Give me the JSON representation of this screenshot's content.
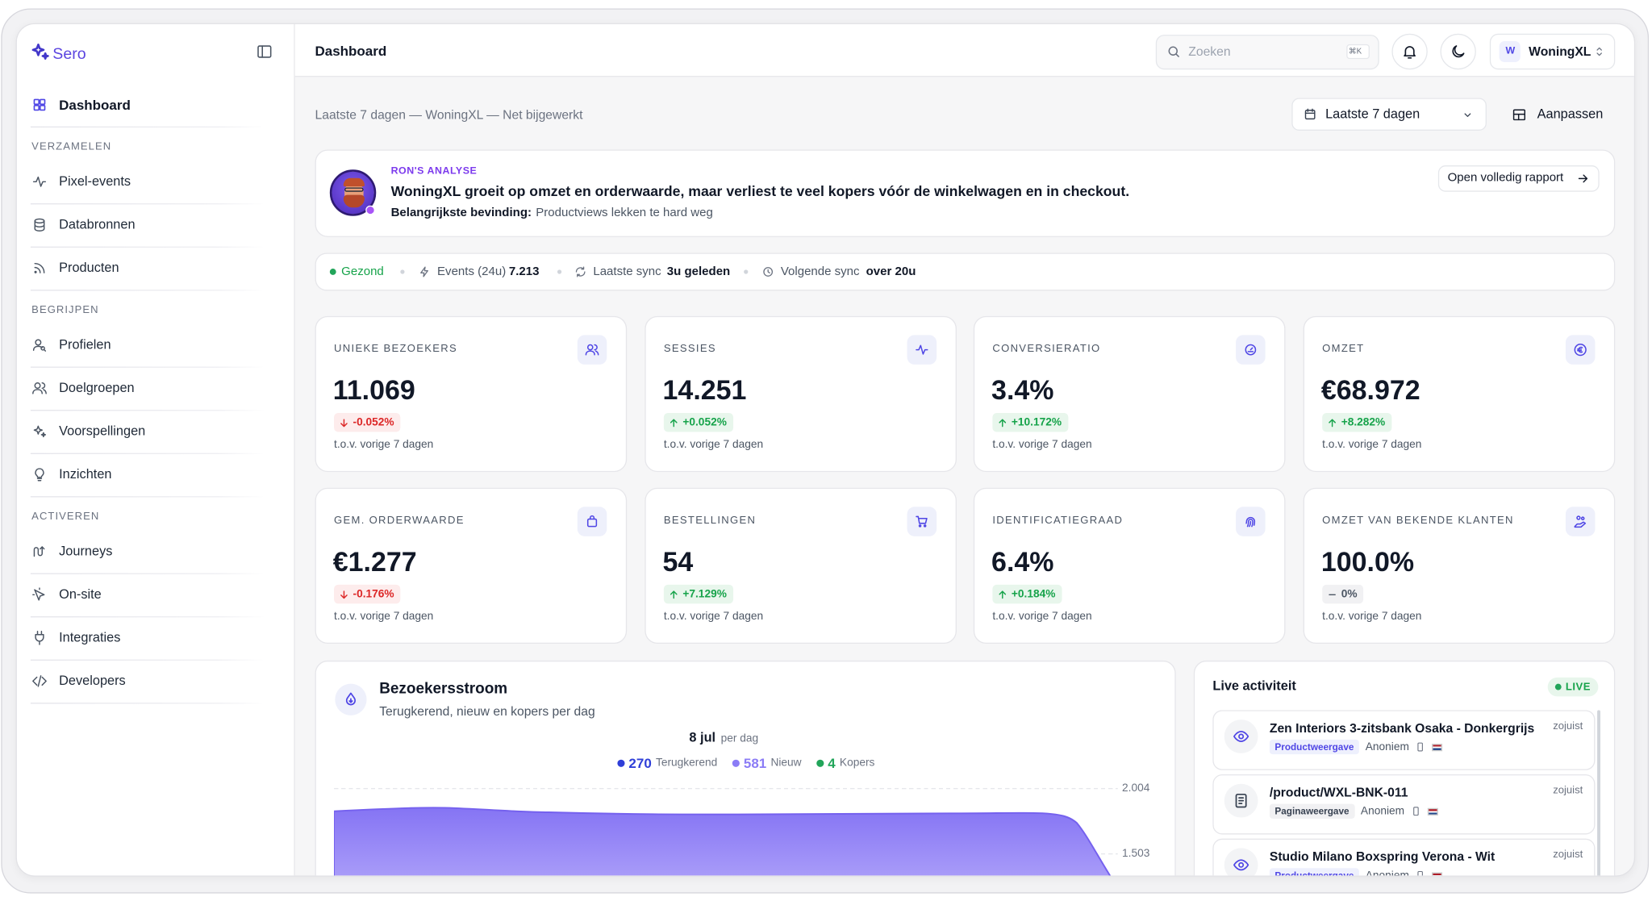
{
  "sidebar": {
    "brand": "Sero",
    "top_item": "Dashboard",
    "sections": [
      {
        "title": "VERZAMELEN",
        "items": [
          "Pixel-events",
          "Databronnen",
          "Producten"
        ]
      },
      {
        "title": "BEGRIJPEN",
        "items": [
          "Profielen",
          "Doelgroepen",
          "Voorspellingen",
          "Inzichten"
        ]
      },
      {
        "title": "ACTIVEREN",
        "items": [
          "Journeys",
          "On-site",
          "Integraties",
          "Developers"
        ]
      }
    ]
  },
  "header": {
    "title": "Dashboard",
    "search_placeholder": "Zoeken",
    "search_shortcut": "⌘K",
    "account_initial": "W",
    "account_name": "WoningXL"
  },
  "toolbar": {
    "subtitle": "Laatste 7 dagen — WoningXL — Net bijgewerkt",
    "date_range": "Laatste 7 dagen",
    "customize": "Aanpassen"
  },
  "analysis": {
    "label": "RON'S ANALYSE",
    "headline": "WoningXL groeit op omzet en orderwaarde, maar verliest te veel kopers vóór de winkelwagen en in checkout.",
    "finding_label": "Belangrijkste bevinding:",
    "finding": "Productviews lekken te hard weg",
    "button": "Open volledig rapport"
  },
  "status": {
    "health": "Gezond",
    "events_label": "Events (24u)",
    "events_value": "7.213",
    "last_sync_label": "Laatste sync",
    "last_sync_value": "3u geleden",
    "next_sync_label": "Volgende sync",
    "next_sync_value": "over 20u"
  },
  "kpis": [
    {
      "label": "UNIEKE BEZOEKERS",
      "value": "11.069",
      "change": "-0.052%",
      "trend": "down",
      "comparison": "t.o.v. vorige 7 dagen"
    },
    {
      "label": "SESSIES",
      "value": "14.251",
      "change": "+0.052%",
      "trend": "up",
      "comparison": "t.o.v. vorige 7 dagen"
    },
    {
      "label": "CONVERSIERATIO",
      "value": "3.4%",
      "change": "+10.172%",
      "trend": "up",
      "comparison": "t.o.v. vorige 7 dagen"
    },
    {
      "label": "OMZET",
      "value": "€68.972",
      "change": "+8.282%",
      "trend": "up",
      "comparison": "t.o.v. vorige 7 dagen"
    },
    {
      "label": "GEM. ORDERWAARDE",
      "value": "€1.277",
      "change": "-0.176%",
      "trend": "down",
      "comparison": "t.o.v. vorige 7 dagen"
    },
    {
      "label": "BESTELLINGEN",
      "value": "54",
      "change": "+7.129%",
      "trend": "up",
      "comparison": "t.o.v. vorige 7 dagen"
    },
    {
      "label": "IDENTIFICATIEGRAAD",
      "value": "6.4%",
      "change": "+0.184%",
      "trend": "up",
      "comparison": "t.o.v. vorige 7 dagen"
    },
    {
      "label": "OMZET VAN BEKENDE KLANTEN",
      "value": "100.0%",
      "change": "0%",
      "trend": "flat",
      "comparison": "t.o.v. vorige 7 dagen"
    }
  ],
  "visitor_flow": {
    "title": "Bezoekersstroom",
    "subtitle": "Terugkerend, nieuw en kopers per dag",
    "tooltip": {
      "date": "8 jul",
      "unit": "per dag",
      "items": [
        {
          "value": "270",
          "label": "Terugkerend",
          "color": "#2f3fd8"
        },
        {
          "value": "581",
          "label": "Nieuw",
          "color": "#8b7cf6"
        },
        {
          "value": "4",
          "label": "Kopers",
          "color": "#22a55a"
        }
      ]
    },
    "yticks": [
      "2.004",
      "1.503"
    ]
  },
  "live": {
    "title": "Live activiteit",
    "badge": "LIVE",
    "events": [
      {
        "title": "Zen Interiors 3-zitsbank Osaka - Donkergrijs",
        "tag": "Productweergave",
        "tag_color": "#4f46e5",
        "user": "Anoniem",
        "time": "zojuist"
      },
      {
        "title": "/product/WXL-BNK-011",
        "tag": "Paginaweergave",
        "tag_color": "#374151",
        "user": "Anoniem",
        "time": "zojuist"
      },
      {
        "title": "Studio Milano Boxspring Verona - Wit",
        "tag": "Productweergave",
        "tag_color": "#4f46e5",
        "user": "Anoniem",
        "time": "zojuist"
      }
    ]
  }
}
